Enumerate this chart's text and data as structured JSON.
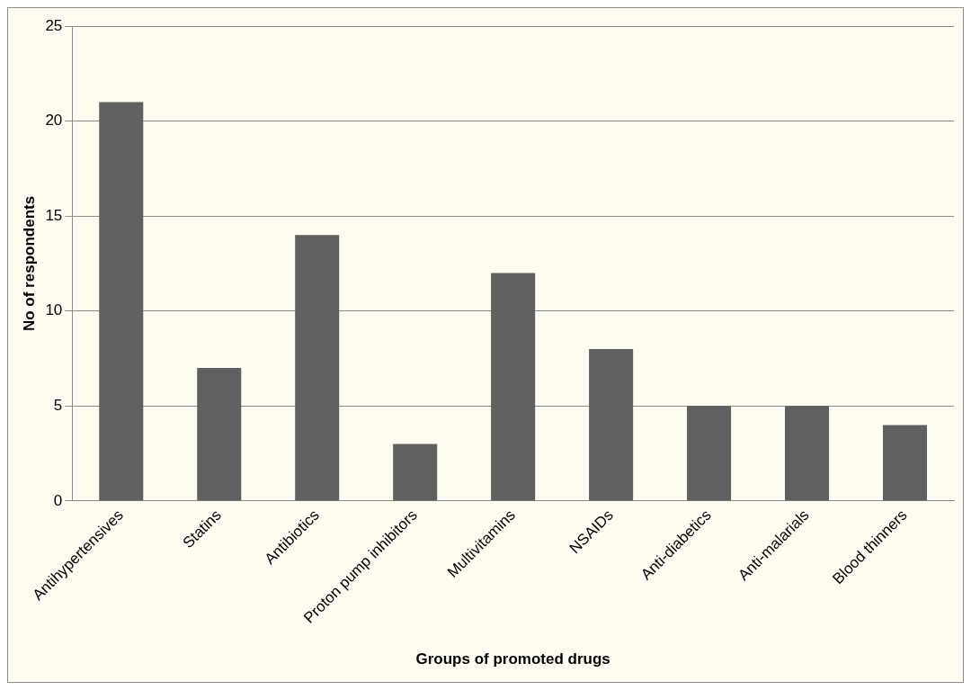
{
  "chart_data": {
    "type": "bar",
    "xlabel": "Groups of promoted drugs",
    "ylabel": "No of respondents",
    "categories": [
      "Antihypertensives",
      "Statins",
      "Antibiotics",
      "Proton pump inhibitors",
      "Multivitamins",
      "NSAIDs",
      "Anti-diabetics",
      "Anti-malarials",
      "Blood thinners"
    ],
    "values": [
      21,
      7,
      14,
      3,
      12,
      8,
      5,
      5,
      4
    ],
    "color": "#606060",
    "ylim": [
      0,
      25
    ],
    "yticks": [
      0,
      5,
      10,
      15,
      20,
      25
    ],
    "grid": "y",
    "legend": false
  }
}
